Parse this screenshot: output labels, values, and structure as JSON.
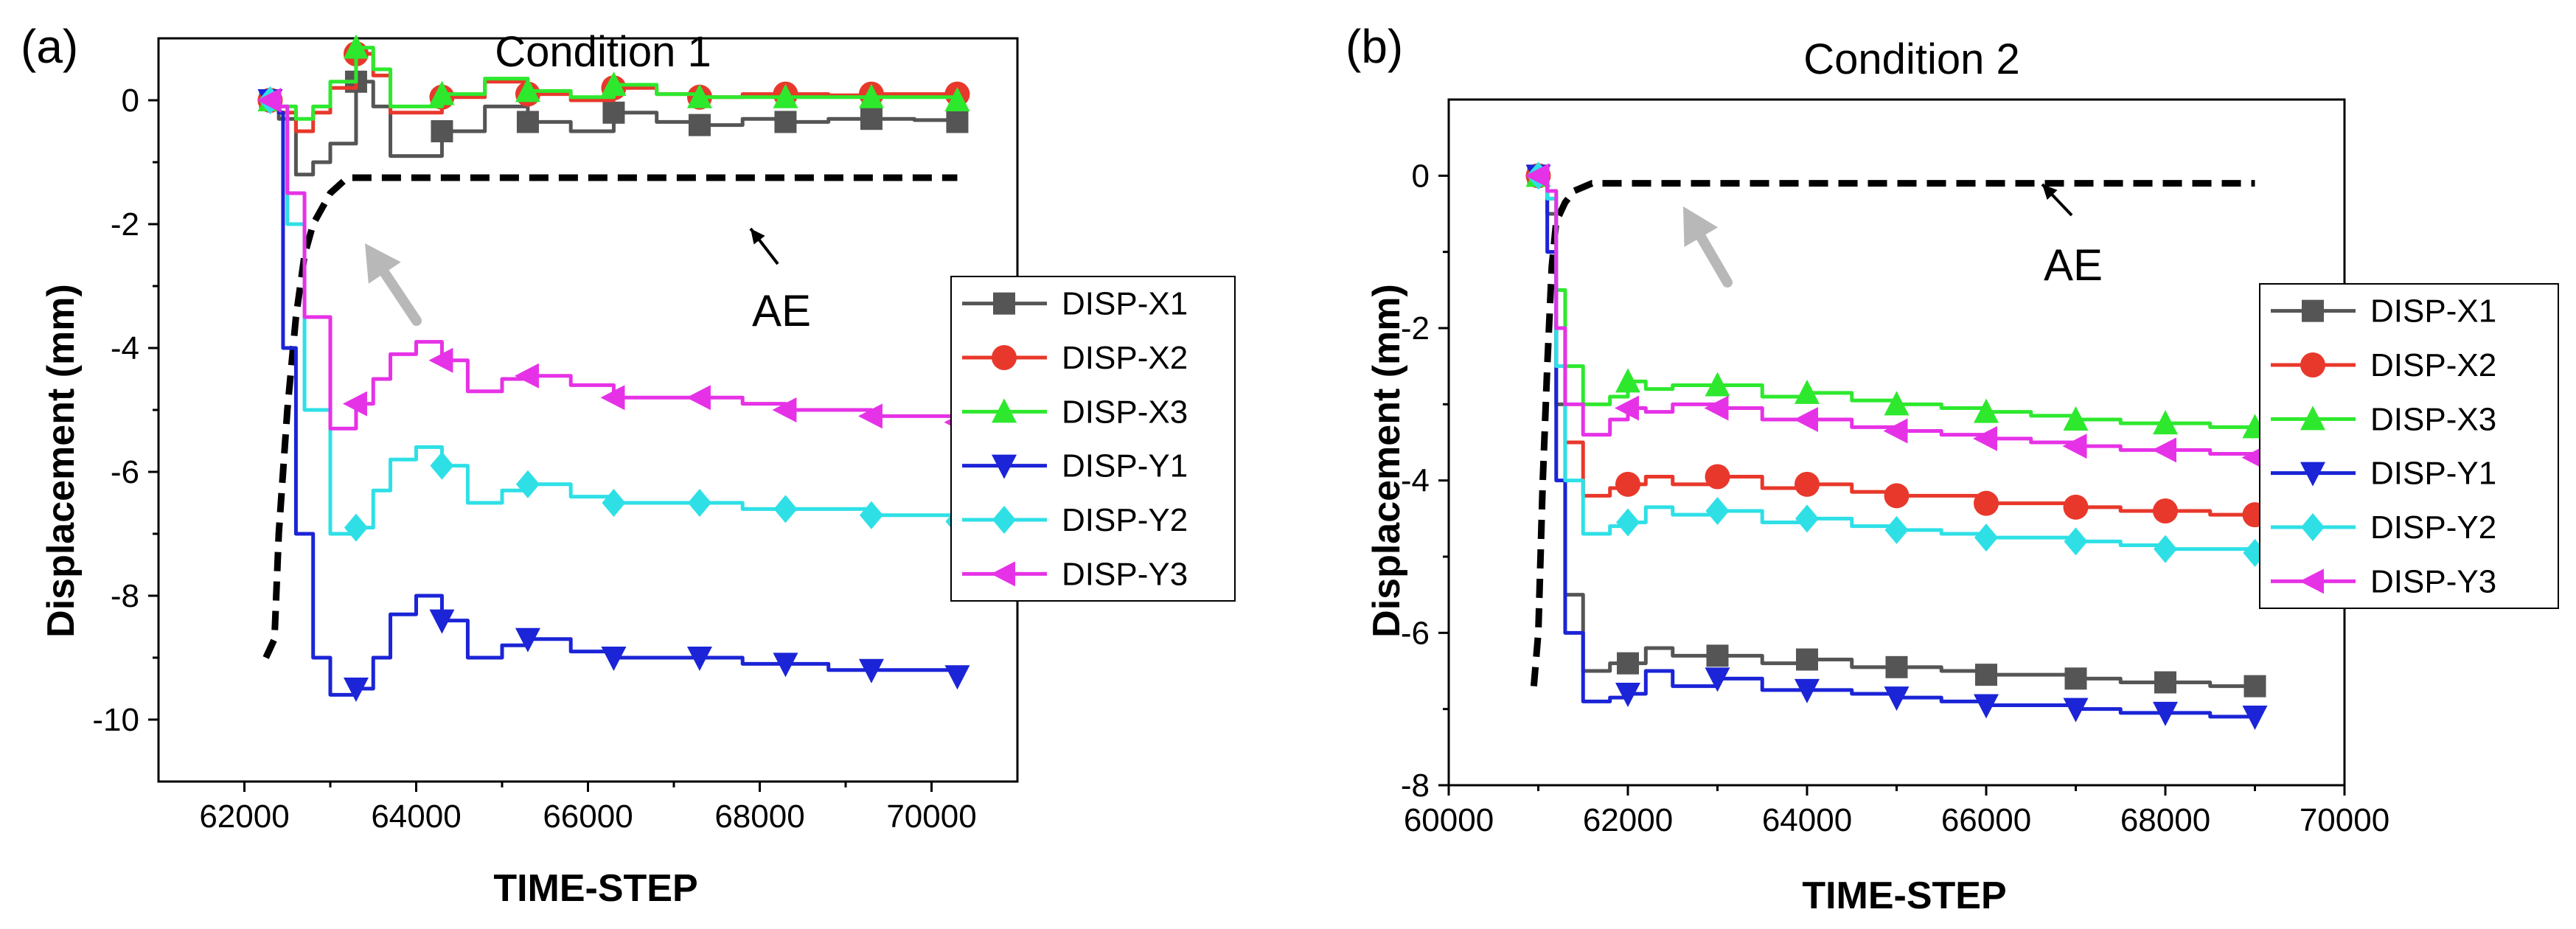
{
  "chart_data": [
    {
      "type": "line",
      "panel_label": "(a)",
      "title": "Condition 1",
      "xlabel": "TIME-STEP",
      "ylabel": "Displacement (mm)",
      "xlim": [
        61000,
        71000
      ],
      "ylim": [
        -11,
        1
      ],
      "xticks": [
        62000,
        64000,
        66000,
        68000,
        70000
      ],
      "xtick_labels": [
        "62000",
        "64000",
        "66000",
        "68000",
        "70000"
      ],
      "yticks": [
        0,
        -2,
        -4,
        -6,
        -8,
        -10
      ],
      "ytick_labels": [
        "0",
        "-2",
        "-4",
        "-6",
        "-8",
        "-10"
      ],
      "legend_position": "right",
      "series": [
        {
          "name": "DISP-X1",
          "color": "#555555",
          "marker": "square",
          "x": [
            62300,
            62400,
            62600,
            62800,
            63000,
            63300,
            63500,
            63700,
            64300,
            64800,
            65300,
            65800,
            66300,
            66800,
            67300,
            67800,
            68300,
            68800,
            69300,
            69800,
            70300
          ],
          "y": [
            0,
            -0.3,
            -1.2,
            -1,
            -0.7,
            0.3,
            -0.1,
            -0.9,
            -0.5,
            -0.1,
            -0.35,
            -0.5,
            -0.2,
            -0.35,
            -0.4,
            -0.3,
            -0.35,
            -0.3,
            -0.3,
            -0.32,
            -0.35
          ],
          "marker_x": [
            62300,
            63300,
            64300,
            65300,
            66300,
            67300,
            68300,
            69300,
            70300
          ],
          "marker_y": [
            0,
            0.3,
            -0.5,
            -0.35,
            -0.2,
            -0.4,
            -0.35,
            -0.3,
            -0.35
          ]
        },
        {
          "name": "DISP-X2",
          "color": "#e8382b",
          "marker": "circle",
          "x": [
            62300,
            62400,
            62600,
            62800,
            63000,
            63300,
            63500,
            63700,
            64300,
            64800,
            65300,
            65800,
            66300,
            66800,
            67300,
            67800,
            68300,
            68800,
            69300,
            69800,
            70300
          ],
          "y": [
            0,
            -0.2,
            -0.5,
            -0.2,
            0.2,
            0.75,
            0.4,
            -0.2,
            0.05,
            0.3,
            0.1,
            0,
            0.2,
            0.1,
            0.05,
            0.1,
            0.1,
            0.08,
            0.1,
            0.1,
            0.1
          ],
          "marker_x": [
            62300,
            63300,
            64300,
            65300,
            66300,
            67300,
            68300,
            69300,
            70300
          ],
          "marker_y": [
            0,
            0.75,
            0.05,
            0.1,
            0.2,
            0.05,
            0.1,
            0.1,
            0.1
          ]
        },
        {
          "name": "DISP-X3",
          "color": "#2ee82e",
          "marker": "triangle-up",
          "x": [
            62300,
            62400,
            62600,
            62800,
            63000,
            63300,
            63500,
            63700,
            64300,
            64800,
            65300,
            65800,
            66300,
            66800,
            67300,
            67800,
            68300,
            68800,
            69300,
            69800,
            70300
          ],
          "y": [
            0,
            -0.1,
            -0.3,
            -0.1,
            0.3,
            0.85,
            0.5,
            -0.1,
            0.1,
            0.35,
            0.15,
            0.05,
            0.25,
            0.1,
            0.05,
            0.05,
            0.05,
            0.05,
            0.05,
            0.05,
            0.0
          ],
          "marker_x": [
            62300,
            63300,
            64300,
            65300,
            66300,
            67300,
            68300,
            69300,
            70300
          ],
          "marker_y": [
            0,
            0.85,
            0.1,
            0.15,
            0.25,
            0.05,
            0.05,
            0.05,
            0.0
          ]
        },
        {
          "name": "DISP-Y1",
          "color": "#1b24d6",
          "marker": "triangle-down",
          "x": [
            62300,
            62400,
            62450,
            62600,
            62800,
            63000,
            63300,
            63500,
            63700,
            64000,
            64300,
            64600,
            65000,
            65300,
            65800,
            66300,
            66800,
            67300,
            67800,
            68300,
            68800,
            69300,
            69800,
            70300
          ],
          "y": [
            0,
            -0.2,
            -4,
            -7,
            -9,
            -9.6,
            -9.5,
            -9,
            -8.3,
            -8,
            -8.4,
            -9,
            -8.8,
            -8.7,
            -8.9,
            -9,
            -9,
            -9,
            -9.1,
            -9.1,
            -9.2,
            -9.2,
            -9.2,
            -9.3
          ],
          "marker_x": [
            62300,
            63300,
            64300,
            65300,
            66300,
            67300,
            68300,
            69300,
            70300
          ],
          "marker_y": [
            0,
            -9.5,
            -8.4,
            -8.7,
            -9,
            -9,
            -9.1,
            -9.2,
            -9.3
          ]
        },
        {
          "name": "DISP-Y2",
          "color": "#2ee0e6",
          "marker": "diamond",
          "x": [
            62300,
            62400,
            62500,
            62700,
            63000,
            63300,
            63500,
            63700,
            64000,
            64300,
            64600,
            65000,
            65300,
            65800,
            66300,
            66800,
            67300,
            67800,
            68300,
            68800,
            69300,
            69800,
            70300
          ],
          "y": [
            0,
            -0.1,
            -2,
            -5,
            -7,
            -6.9,
            -6.3,
            -5.8,
            -5.6,
            -5.9,
            -6.5,
            -6.3,
            -6.2,
            -6.4,
            -6.5,
            -6.5,
            -6.5,
            -6.6,
            -6.6,
            -6.6,
            -6.7,
            -6.7,
            -6.8
          ],
          "marker_x": [
            62300,
            63300,
            64300,
            65300,
            66300,
            67300,
            68300,
            69300,
            70300
          ],
          "marker_y": [
            0,
            -6.9,
            -5.9,
            -6.2,
            -6.5,
            -6.5,
            -6.6,
            -6.7,
            -6.8
          ]
        },
        {
          "name": "DISP-Y3",
          "color": "#e632e6",
          "marker": "triangle-left",
          "x": [
            62300,
            62400,
            62500,
            62700,
            63000,
            63300,
            63500,
            63700,
            64000,
            64300,
            64600,
            65000,
            65300,
            65800,
            66300,
            66800,
            67300,
            67800,
            68300,
            68800,
            69300,
            69800,
            70300
          ],
          "y": [
            0,
            -0.1,
            -1.5,
            -3.5,
            -5.3,
            -4.9,
            -4.5,
            -4.1,
            -3.9,
            -4.2,
            -4.7,
            -4.5,
            -4.45,
            -4.6,
            -4.8,
            -4.8,
            -4.8,
            -4.9,
            -5,
            -5,
            -5.1,
            -5.1,
            -5.2
          ],
          "marker_x": [
            62300,
            63300,
            64300,
            65300,
            66300,
            67300,
            68300,
            69300,
            70300
          ],
          "marker_y": [
            0,
            -4.9,
            -4.2,
            -4.45,
            -4.8,
            -4.8,
            -5,
            -5.1,
            -5.2
          ]
        }
      ],
      "ae_line": {
        "label": "AE",
        "x": [
          62250,
          62350,
          62400,
          62500,
          62600,
          62700,
          62800,
          63000,
          63200,
          70300
        ],
        "y": [
          -9,
          -8.7,
          -7,
          -5,
          -3.5,
          -2.5,
          -2,
          -1.5,
          -1.25,
          -1.25
        ]
      }
    },
    {
      "type": "line",
      "panel_label": "(b)",
      "title": "Condition 2",
      "xlabel": "TIME-STEP",
      "ylabel": "Displacement (mm)",
      "xlim": [
        60000,
        70000
      ],
      "ylim": [
        -8,
        1
      ],
      "xticks": [
        60000,
        62000,
        64000,
        66000,
        68000,
        70000
      ],
      "xtick_labels": [
        "60000",
        "62000",
        "64000",
        "66000",
        "68000",
        "70000"
      ],
      "yticks": [
        0,
        -2,
        -4,
        -6,
        -8
      ],
      "ytick_labels": [
        "0",
        "-2",
        "-4",
        "-6",
        "-8"
      ],
      "legend_position": "right",
      "series": [
        {
          "name": "DISP-X1",
          "color": "#555555",
          "marker": "square",
          "x": [
            61000,
            61100,
            61200,
            61300,
            61500,
            61800,
            62000,
            62200,
            62500,
            63000,
            63500,
            64000,
            64500,
            65000,
            65500,
            66000,
            66500,
            67000,
            67500,
            68000,
            68500,
            69000
          ],
          "y": [
            0,
            -0.5,
            -3,
            -5.5,
            -6.5,
            -6.4,
            -6.4,
            -6.2,
            -6.3,
            -6.3,
            -6.4,
            -6.35,
            -6.45,
            -6.45,
            -6.5,
            -6.55,
            -6.55,
            -6.6,
            -6.65,
            -6.65,
            -6.7,
            -6.7
          ],
          "marker_x": [
            61000,
            62000,
            63000,
            64000,
            65000,
            66000,
            67000,
            68000,
            69000
          ],
          "marker_y": [
            0,
            -6.4,
            -6.3,
            -6.35,
            -6.45,
            -6.55,
            -6.6,
            -6.65,
            -6.7
          ]
        },
        {
          "name": "DISP-X2",
          "color": "#e8382b",
          "marker": "circle",
          "x": [
            61000,
            61100,
            61200,
            61300,
            61500,
            61800,
            62000,
            62200,
            62500,
            63000,
            63500,
            64000,
            64500,
            65000,
            65500,
            66000,
            66500,
            67000,
            67500,
            68000,
            68500,
            69000
          ],
          "y": [
            0,
            -0.3,
            -2,
            -3.5,
            -4.2,
            -4.1,
            -4.05,
            -3.95,
            -4.05,
            -3.95,
            -4.1,
            -4.05,
            -4.15,
            -4.2,
            -4.2,
            -4.3,
            -4.3,
            -4.35,
            -4.4,
            -4.4,
            -4.45,
            -4.45
          ],
          "marker_x": [
            61000,
            62000,
            63000,
            64000,
            65000,
            66000,
            67000,
            68000,
            69000
          ],
          "marker_y": [
            0,
            -4.05,
            -3.95,
            -4.05,
            -4.2,
            -4.3,
            -4.35,
            -4.4,
            -4.45
          ]
        },
        {
          "name": "DISP-X3",
          "color": "#2ee82e",
          "marker": "triangle-up",
          "x": [
            61000,
            61100,
            61200,
            61300,
            61500,
            61800,
            62000,
            62200,
            62500,
            63000,
            63500,
            64000,
            64500,
            65000,
            65500,
            66000,
            66500,
            67000,
            67500,
            68000,
            68500,
            69000
          ],
          "y": [
            0,
            -0.2,
            -1.5,
            -2.5,
            -3,
            -2.9,
            -2.7,
            -2.8,
            -2.75,
            -2.75,
            -2.9,
            -2.85,
            -2.95,
            -3,
            -3.05,
            -3.1,
            -3.15,
            -3.2,
            -3.25,
            -3.25,
            -3.3,
            -3.3
          ],
          "marker_x": [
            61000,
            62000,
            63000,
            64000,
            65000,
            66000,
            67000,
            68000,
            69000
          ],
          "marker_y": [
            0,
            -2.7,
            -2.75,
            -2.85,
            -3,
            -3.1,
            -3.2,
            -3.25,
            -3.3
          ]
        },
        {
          "name": "DISP-Y1",
          "color": "#1b24d6",
          "marker": "triangle-down",
          "x": [
            61000,
            61100,
            61200,
            61300,
            61500,
            61800,
            62000,
            62200,
            62500,
            63000,
            63500,
            64000,
            64500,
            65000,
            65500,
            66000,
            66500,
            67000,
            67500,
            68000,
            68500,
            69000
          ],
          "y": [
            0,
            -1,
            -4,
            -6,
            -6.9,
            -6.85,
            -6.8,
            -6.5,
            -6.7,
            -6.6,
            -6.75,
            -6.75,
            -6.8,
            -6.85,
            -6.9,
            -6.95,
            -6.95,
            -7,
            -7.05,
            -7.05,
            -7.1,
            -7.1
          ],
          "marker_x": [
            61000,
            62000,
            63000,
            64000,
            65000,
            66000,
            67000,
            68000,
            69000
          ],
          "marker_y": [
            0,
            -6.8,
            -6.6,
            -6.75,
            -6.85,
            -6.95,
            -7,
            -7.05,
            -7.1
          ]
        },
        {
          "name": "DISP-Y2",
          "color": "#2ee0e6",
          "marker": "diamond",
          "x": [
            61000,
            61100,
            61200,
            61300,
            61500,
            61800,
            62000,
            62200,
            62500,
            63000,
            63500,
            64000,
            64500,
            65000,
            65500,
            66000,
            66500,
            67000,
            67500,
            68000,
            68500,
            69000
          ],
          "y": [
            0,
            -0.3,
            -2.5,
            -4,
            -4.7,
            -4.6,
            -4.55,
            -4.35,
            -4.45,
            -4.4,
            -4.55,
            -4.5,
            -4.6,
            -4.65,
            -4.7,
            -4.75,
            -4.75,
            -4.8,
            -4.85,
            -4.9,
            -4.9,
            -4.95
          ],
          "marker_x": [
            61000,
            62000,
            63000,
            64000,
            65000,
            66000,
            67000,
            68000,
            69000
          ],
          "marker_y": [
            0,
            -4.55,
            -4.4,
            -4.5,
            -4.65,
            -4.75,
            -4.8,
            -4.9,
            -4.95
          ]
        },
        {
          "name": "DISP-Y3",
          "color": "#e632e6",
          "marker": "triangle-left",
          "x": [
            61000,
            61100,
            61200,
            61300,
            61500,
            61800,
            62000,
            62200,
            62500,
            63000,
            63500,
            64000,
            64500,
            65000,
            65500,
            66000,
            66500,
            67000,
            67500,
            68000,
            68500,
            69000
          ],
          "y": [
            0,
            -0.2,
            -2,
            -3,
            -3.4,
            -3.2,
            -3.05,
            -3.1,
            -3.0,
            -3.05,
            -3.2,
            -3.2,
            -3.3,
            -3.35,
            -3.4,
            -3.45,
            -3.5,
            -3.55,
            -3.6,
            -3.6,
            -3.65,
            -3.7
          ],
          "marker_x": [
            61000,
            62000,
            63000,
            64000,
            65000,
            66000,
            67000,
            68000,
            69000
          ],
          "marker_y": [
            0,
            -3.05,
            -3.05,
            -3.2,
            -3.35,
            -3.45,
            -3.55,
            -3.6,
            -3.7
          ]
        }
      ],
      "ae_line": {
        "label": "AE",
        "x": [
          60950,
          61000,
          61050,
          61100,
          61150,
          61200,
          61300,
          61400,
          61600,
          69000
        ],
        "y": [
          -6.7,
          -6,
          -4,
          -2.5,
          -1.2,
          -0.6,
          -0.35,
          -0.2,
          -0.1,
          -0.1
        ]
      }
    }
  ]
}
